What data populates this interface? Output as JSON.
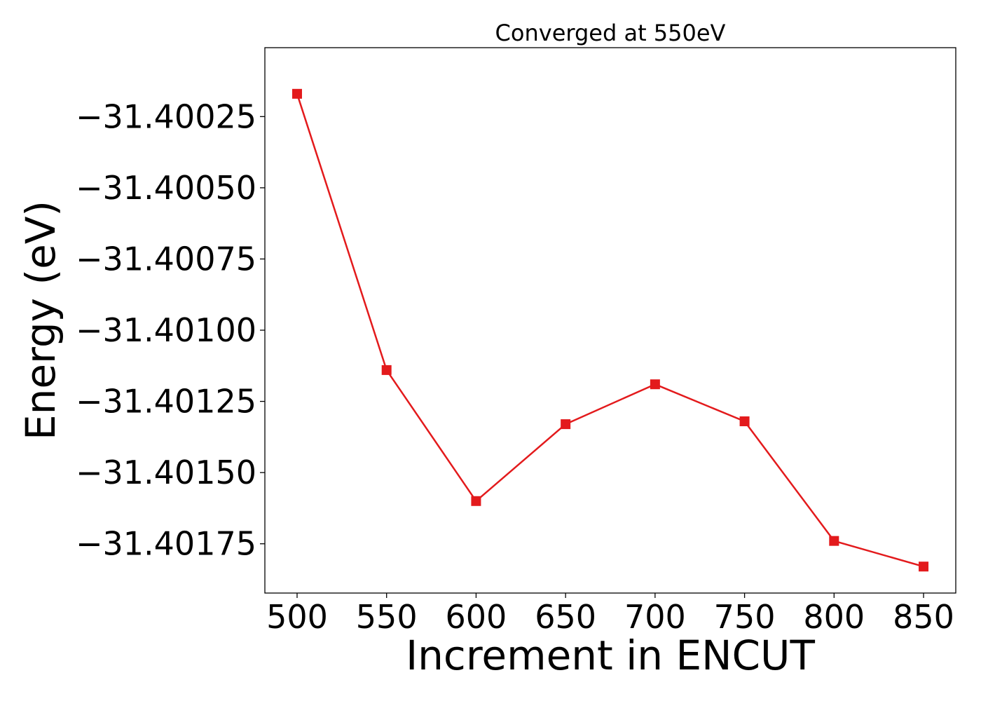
{
  "chart_data": {
    "type": "line",
    "title": "Converged at 550eV",
    "xlabel": "Increment in ENCUT",
    "ylabel": "Energy (eV)",
    "x": [
      500,
      550,
      600,
      650,
      700,
      750,
      800,
      850
    ],
    "series": [
      {
        "values": [
          -31.40017,
          -31.40114,
          -31.4016,
          -31.40133,
          -31.40119,
          -31.40132,
          -31.40174,
          -31.40183
        ],
        "color": "#e31a1c",
        "marker": "square"
      }
    ],
    "xticks": [
      500,
      550,
      600,
      650,
      700,
      750,
      800,
      850
    ],
    "xtick_labels": [
      "500",
      "550",
      "600",
      "650",
      "700",
      "750",
      "800",
      "850"
    ],
    "yticks": [
      -31.40025,
      -31.4005,
      -31.40075,
      -31.401,
      -31.40125,
      -31.4015,
      -31.40175
    ],
    "ytick_labels": [
      "−31.40025",
      "−31.40050",
      "−31.40075",
      "−31.40100",
      "−31.40125",
      "−31.40150",
      "−31.40175"
    ],
    "xlim": [
      482,
      868
    ],
    "ylim": [
      -31.401923,
      -31.400008
    ],
    "grid": false,
    "legend": "none"
  }
}
